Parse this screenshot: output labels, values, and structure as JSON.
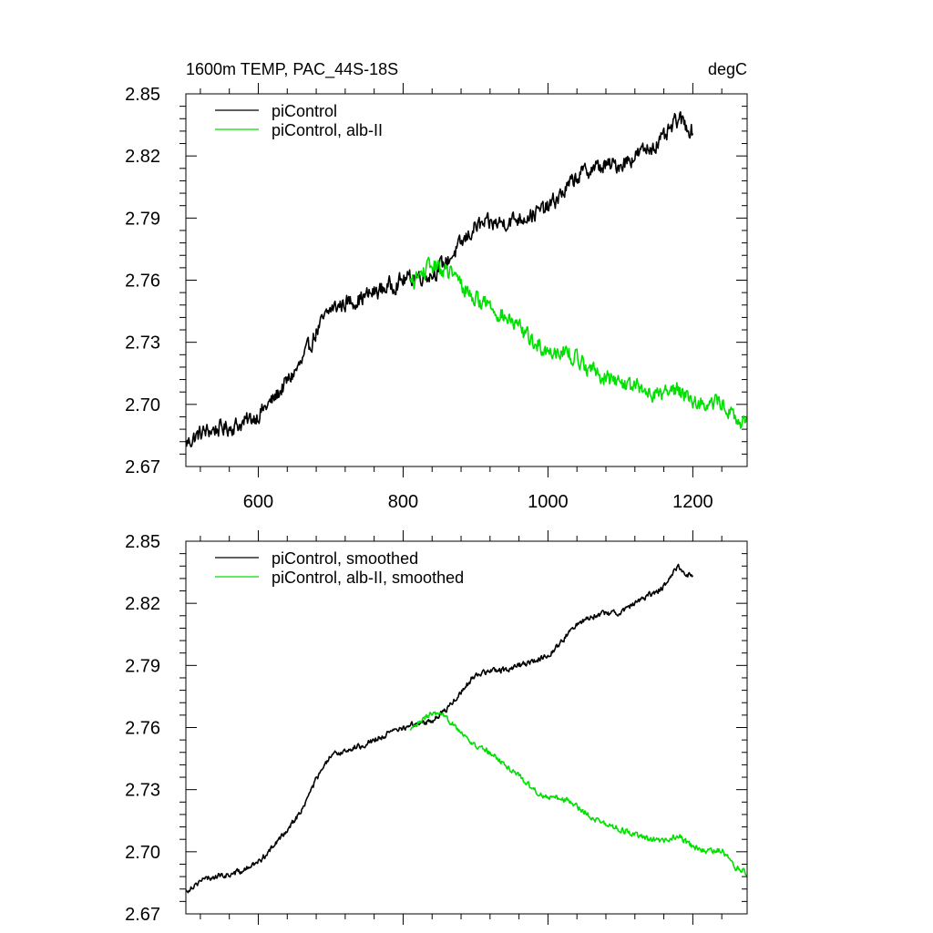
{
  "chart_data": [
    {
      "type": "line",
      "title": "1600m TEMP, PAC_44S-18S",
      "units": "degC",
      "xlabel": "",
      "ylabel": "",
      "xlim": [
        500,
        1275
      ],
      "ylim": [
        2.67,
        2.85
      ],
      "x_ticks": [
        600,
        800,
        1000,
        1200
      ],
      "x_tick_labels": [
        "600",
        "800",
        "1000",
        "1200"
      ],
      "y_ticks": [
        2.67,
        2.7,
        2.73,
        2.76,
        2.79,
        2.82,
        2.85
      ],
      "y_tick_labels": [
        "2.67",
        "2.70",
        "2.73",
        "2.76",
        "2.79",
        "2.82",
        "2.85"
      ],
      "grid": false,
      "legend_position": "top-left",
      "series": [
        {
          "name": "piControl",
          "color": "#000000",
          "noise": 0.0035,
          "x": [
            500,
            520,
            540,
            560,
            580,
            600,
            620,
            640,
            660,
            680,
            700,
            720,
            740,
            760,
            780,
            800,
            820,
            840,
            860,
            880,
            900,
            920,
            940,
            960,
            980,
            1000,
            1020,
            1040,
            1060,
            1080,
            1100,
            1120,
            1140,
            1160,
            1180,
            1190,
            1200
          ],
          "values": [
            2.681,
            2.686,
            2.688,
            2.689,
            2.691,
            2.695,
            2.702,
            2.711,
            2.72,
            2.735,
            2.746,
            2.749,
            2.751,
            2.754,
            2.757,
            2.76,
            2.762,
            2.763,
            2.769,
            2.777,
            2.786,
            2.787,
            2.788,
            2.79,
            2.792,
            2.795,
            2.802,
            2.81,
            2.814,
            2.815,
            2.816,
            2.82,
            2.824,
            2.828,
            2.838,
            2.835,
            2.832
          ]
        },
        {
          "name": "piControl, alb-II",
          "color": "#00e000",
          "noise": 0.0035,
          "x": [
            810,
            825,
            840,
            855,
            870,
            885,
            900,
            920,
            940,
            960,
            980,
            1000,
            1020,
            1040,
            1060,
            1080,
            1100,
            1120,
            1140,
            1160,
            1180,
            1200,
            1220,
            1240,
            1260,
            1275
          ],
          "values": [
            2.758,
            2.763,
            2.767,
            2.765,
            2.762,
            2.756,
            2.751,
            2.748,
            2.742,
            2.737,
            2.73,
            2.726,
            2.726,
            2.722,
            2.717,
            2.713,
            2.711,
            2.708,
            2.706,
            2.705,
            2.708,
            2.702,
            2.7,
            2.701,
            2.692,
            2.69
          ]
        }
      ]
    },
    {
      "type": "line",
      "title": "",
      "units": "",
      "xlabel": "",
      "ylabel": "",
      "xlim": [
        500,
        1275
      ],
      "ylim": [
        2.67,
        2.85
      ],
      "x_ticks": [
        600,
        800,
        1000,
        1200
      ],
      "x_tick_labels": [],
      "y_ticks": [
        2.67,
        2.7,
        2.73,
        2.76,
        2.79,
        2.82,
        2.85
      ],
      "y_tick_labels": [
        "2.67",
        "2.70",
        "2.73",
        "2.76",
        "2.79",
        "2.82",
        "2.85"
      ],
      "grid": false,
      "legend_position": "top-left",
      "series": [
        {
          "name": "piControl, smoothed",
          "color": "#000000",
          "noise": 0.0012,
          "x": [
            500,
            520,
            540,
            560,
            580,
            600,
            620,
            640,
            660,
            680,
            700,
            720,
            740,
            760,
            780,
            800,
            820,
            840,
            860,
            880,
            900,
            920,
            940,
            960,
            980,
            1000,
            1020,
            1040,
            1060,
            1080,
            1100,
            1120,
            1140,
            1160,
            1180,
            1190,
            1200
          ],
          "values": [
            2.681,
            2.686,
            2.688,
            2.689,
            2.691,
            2.695,
            2.702,
            2.711,
            2.72,
            2.735,
            2.746,
            2.749,
            2.751,
            2.754,
            2.757,
            2.76,
            2.762,
            2.763,
            2.769,
            2.777,
            2.786,
            2.787,
            2.788,
            2.79,
            2.792,
            2.795,
            2.802,
            2.81,
            2.814,
            2.815,
            2.816,
            2.82,
            2.824,
            2.828,
            2.838,
            2.835,
            2.832
          ]
        },
        {
          "name": "piControl, alb-II, smoothed",
          "color": "#00e000",
          "noise": 0.0012,
          "x": [
            810,
            825,
            840,
            855,
            870,
            885,
            900,
            920,
            940,
            960,
            980,
            1000,
            1020,
            1040,
            1060,
            1080,
            1100,
            1120,
            1140,
            1160,
            1180,
            1200,
            1220,
            1240,
            1260,
            1275
          ],
          "values": [
            2.758,
            2.763,
            2.767,
            2.765,
            2.762,
            2.756,
            2.751,
            2.748,
            2.742,
            2.737,
            2.73,
            2.726,
            2.726,
            2.722,
            2.717,
            2.713,
            2.711,
            2.708,
            2.706,
            2.705,
            2.708,
            2.702,
            2.7,
            2.701,
            2.692,
            2.69
          ]
        }
      ]
    }
  ]
}
